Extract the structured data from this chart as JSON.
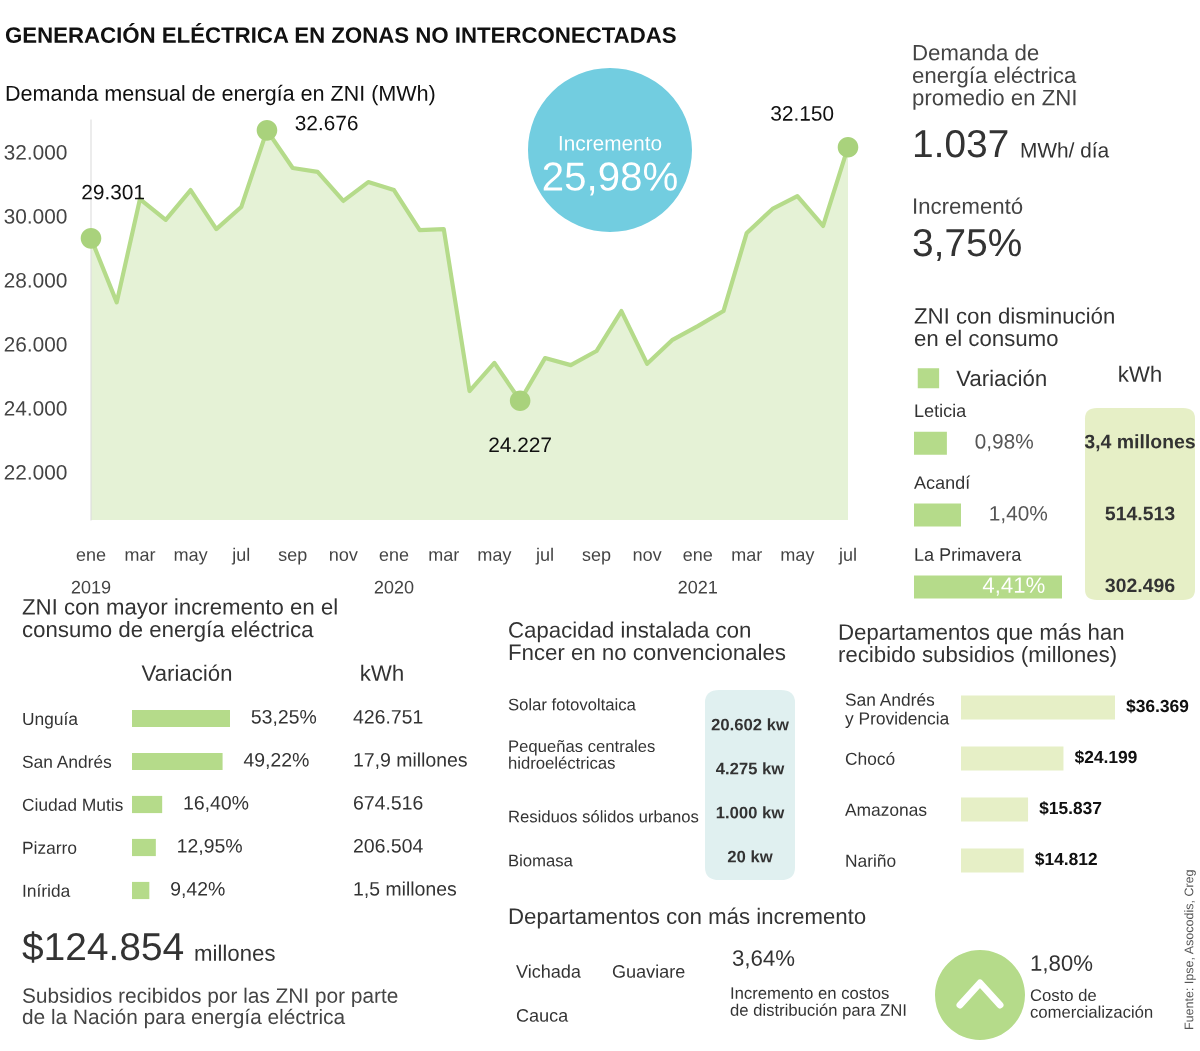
{
  "chart_data": [
    {
      "type": "area",
      "title": "GENERACIÓN ELÉCTRICA EN ZONAS NO INTERCONECTADAS",
      "subtitle": "Demanda mensual de energía en ZNI (MWh)",
      "x": [
        "2019-01",
        "2019-02",
        "2019-03",
        "2019-04",
        "2019-05",
        "2019-06",
        "2019-07",
        "2019-08",
        "2019-09",
        "2019-10",
        "2019-11",
        "2019-12",
        "2020-01",
        "2020-02",
        "2020-03",
        "2020-04",
        "2020-05",
        "2020-06",
        "2020-07",
        "2020-08",
        "2020-09",
        "2020-10",
        "2020-11",
        "2020-12",
        "2021-01",
        "2021-02",
        "2021-03",
        "2021-04",
        "2021-05",
        "2021-06",
        "2021-07"
      ],
      "series": [
        {
          "color": "#b5db8a",
          "values": [
            29301,
            27300,
            30530,
            29880,
            30810,
            29590,
            30280,
            32676,
            31500,
            31380,
            30470,
            31060,
            30810,
            29560,
            29590,
            24530,
            25410,
            24227,
            25560,
            25340,
            25780,
            27030,
            25380,
            26120,
            26560,
            27030,
            29470,
            30220,
            30620,
            29690,
            32150
          ]
        }
      ],
      "xlim": [
        "2019-01",
        "2021-07"
      ],
      "ylim": [
        20500,
        33000
      ],
      "yticks": [
        {
          "value": 22000,
          "label": "22.000"
        },
        {
          "value": 24000,
          "label": "24.000"
        },
        {
          "value": 26000,
          "label": "26.000"
        },
        {
          "value": 28000,
          "label": "28.000"
        },
        {
          "value": 30000,
          "label": "30.000"
        },
        {
          "value": 32000,
          "label": "32.000"
        }
      ],
      "xticks": [
        {
          "value": "2019-01",
          "label": "ene\n2019"
        },
        {
          "value": "2019-03",
          "label": "mar"
        },
        {
          "value": "2019-05",
          "label": "may"
        },
        {
          "value": "2019-07",
          "label": "jul"
        },
        {
          "value": "2019-09",
          "label": "sep"
        },
        {
          "value": "2019-11",
          "label": "nov"
        },
        {
          "value": "2020-01",
          "label": "ene\n2020"
        },
        {
          "value": "2020-03",
          "label": "mar"
        },
        {
          "value": "2020-05",
          "label": "may"
        },
        {
          "value": "2020-07",
          "label": "jul"
        },
        {
          "value": "2020-09",
          "label": "sep"
        },
        {
          "value": "2020-11",
          "label": "nov"
        },
        {
          "value": "2021-01",
          "label": "ene\n2021"
        },
        {
          "value": "2021-03",
          "label": "mar"
        },
        {
          "value": "2021-05",
          "label": "may"
        },
        {
          "value": "2021-07",
          "label": "jul"
        }
      ],
      "annotations": [
        {
          "text": "29.301",
          "x": "2019-01",
          "y": 29301
        },
        {
          "text": "32.676",
          "x": "2019-08",
          "y": 32676
        },
        {
          "text": "24.227",
          "x": "2020-06",
          "y": 24227
        },
        {
          "text": "32.150",
          "x": "2021-07",
          "y": 32150
        },
        "Incremento",
        "25,98%"
      ]
    },
    {
      "type": "other",
      "annotations": [
        "Demanda de\nenergía eléctrica\npromedio en ZNI",
        "1.037",
        "MWh/ día",
        "Incrementó",
        "3,75%"
      ]
    },
    {
      "type": "bar",
      "orientation": "horizontal",
      "title": "ZNI con disminución\nen el consumo",
      "categories": [
        "Leticia",
        "Acandí",
        "La Primavera"
      ],
      "series": [
        {
          "name": "Variación",
          "color": "#b5db8a",
          "values": [
            0.98,
            1.4,
            4.41
          ],
          "value_labels": [
            "0,98%",
            "1,40%",
            "4,41%"
          ]
        }
      ],
      "tick_labels": "y",
      "legend": "top left",
      "annotations": [
        "kWh",
        "3,4 millones",
        "514.513",
        "302.496"
      ]
    },
    {
      "type": "bar",
      "orientation": "horizontal",
      "title": "ZNI con mayor incremento en el\nconsumo de energía eléctrica",
      "categories": [
        "Unguía",
        "San Andrés",
        "Ciudad Mutis",
        "Pizarro",
        "Inírida"
      ],
      "series": [
        {
          "name": "Variación",
          "color": "#b5db8a",
          "values": [
            53.25,
            49.22,
            16.4,
            12.95,
            9.42
          ],
          "value_labels": [
            "53,25%",
            "49,22%",
            "16,40%",
            "12,95%",
            "9,42%"
          ]
        }
      ],
      "tick_labels": "y",
      "annotations": [
        "kWh",
        "426.751",
        "17,9 millones",
        "674.516",
        "206.504",
        "1,5 millones"
      ]
    },
    {
      "type": "other",
      "annotations": [
        "$124.854",
        "millones",
        "Subsidios recibidos por las ZNI por parte\nde la Nación para energía eléctrica"
      ]
    },
    {
      "type": "other",
      "title": "Capacidad instalada con\nFncer en no convencionales",
      "annotations": [
        "Solar fotovoltaica",
        "Pequeñas centrales\nhidroeléctricas",
        "Residuos sólidos urbanos",
        "Biomasa",
        "20.602 kw",
        "4.275 kw",
        "1.000 kw",
        "20 kw"
      ]
    },
    {
      "type": "bar",
      "orientation": "horizontal",
      "title": "Departamentos que más han\nrecibido subsidios (millones)",
      "categories": [
        "San Andrés\ny Providencia",
        "Chocó",
        "Amazonas",
        "Nariño"
      ],
      "series": [
        {
          "color": "#e6efc6",
          "values": [
            36369,
            24199,
            15837,
            14812
          ],
          "value_labels": [
            "$36.369",
            "$24.199",
            "$15.837",
            "$14.812"
          ]
        }
      ],
      "tick_labels": "y"
    },
    {
      "type": "other",
      "title": "Departamentos con más incremento",
      "annotations": [
        "Vichada",
        "Guaviare",
        "Cauca",
        "3,64%",
        "Incremento en costos\nde distribución para ZNI",
        "1,80%",
        "Costo de\ncomercialización",
        "Fuente: Ipse, Asocodis, Creg"
      ]
    }
  ]
}
